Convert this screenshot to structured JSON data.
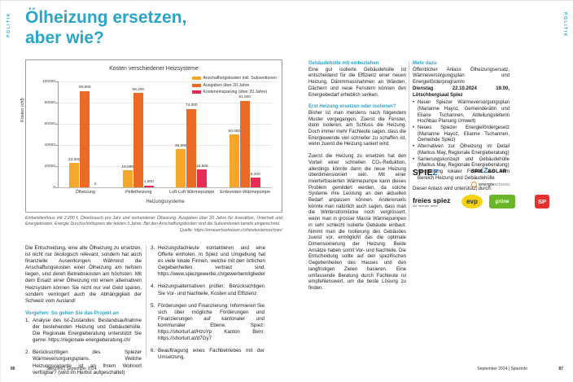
{
  "accent": "#2aa5c9",
  "page_left": {
    "section_label": "POLITIK",
    "title_line1": "Ölheizung ersetzen,",
    "title_line2": "aber wie?",
    "caption": "Einfamilienhaus mit 2.200 L Ölverbrauch pro Jahr und vorhandener Ölheizung. Ausgaben über 20 Jahre für Investition, Unterhalt und Energiekosten. Energie Durchschnittspreis der letzten 3 Jahre. Bei den Anschaffungskosten sind die Subventionen bereits eingerechnet.",
    "source": "Quelle: https://erneuerbarheizen.ch/heizkostenrechner/",
    "intro": "Die Entscheidung, eine alte Ölheizung zu ersetzen, ist nicht nur ökologisch relevant, sondern hat auch finanzielle Auswirkungen. Während die Anschaffungskosten einer Ölheizung am tiefsten liegen, sind deren Betriebskosten am höchsten. Mit dem Ersatz einer Ölheizung mit einem alternativen Heizsystem können Sie nicht nur viel Geld sparen, sondern verringert auch die Abhängigkeit der Schweiz vom Ausland!",
    "steps_heading": "Vorgehen: So gehen Sie das Projekt an",
    "step_nums": [
      "1.",
      "2.",
      "3.",
      "4.",
      "5.",
      "6."
    ],
    "steps": [
      "Analyse des Ist-Zustandes: Bestandsaufnahme der bestehenden Heizung und Gebäudehülle. Die Regionale Energieberatung unterstützt Sie gerne: https://regionale-energieberatung.ch/",
      "Berücksichtigen des Spiezer Wärmeversorgungsplans. Welche Heizungsvariante ist an Ihrem Wohnort verfügbar? (wird im Herbst aufgeschaltet)",
      "Heizungsfachleute kontaktieren und eine Offerte einholen. In Spiez und Umgebung hat es viele lokale Firmen, welche mit den örtlichen Gegebenheiten vertraut sind. https://www.spiezgewerbe.ch/gewerbemitglieder",
      "Heizungsalternativen prüfen: Berücksichtigen Sie Vor- und Nachteile, Kosten und Effizienz.",
      "Förderungen und Finanzierung: Informieren Sie sich über mögliche Förderungen und Finanzierungen auf kantonaler und kommunaler Ebene. Spiez: https://shorturl.at/HzoYp Kanton Bern: https://shorturl.at/d7Gy7",
      "Beauftragung eines Fachbetriebes mit der Umsetzung."
    ],
    "footer_page": "86",
    "footer_text": "Spiezinfo | September 2024"
  },
  "chart_data": {
    "type": "bar",
    "title": "Kosten verschiedener Heizsysteme",
    "xlabel": "Heizungssysteme",
    "ylabel": "Kosten (chf)",
    "ylim": [
      0,
      100000
    ],
    "ytick_step": 20000,
    "grid": true,
    "legend_position": "upper right",
    "categories": [
      "Ölheizung",
      "Pelletheizung",
      "Luft-Luft Wärmepumpe",
      "Erdsonden-Wärmepumpe"
    ],
    "series": [
      {
        "name": "Anschaffungskosten inkl. Subventionen",
        "color": "#f5a72b",
        "values": [
          23000,
          16000,
          36000,
          50000
        ]
      },
      {
        "name": "Ausgaben über 20 Jahre",
        "color": "#ea6a26",
        "values": [
          90800,
          89200,
          74000,
          81600
        ]
      },
      {
        "name": "Kosteneinsparung (über 20 Jahre)",
        "color": "#e72d56",
        "values": [
          0,
          1600,
          16800,
          9200
        ]
      }
    ]
  },
  "page_right": {
    "section_label": "POLITIK",
    "sec1_heading": "Gebäudehülle mit einbeziehen",
    "sec1_para": "Eine gut isolierte Gebäudehülle ist entscheidend für die Effizienz einer neuen Heizung. Dämmmassnahmen an Wänden, Dächern und neue Fenstern können den Energiebedarf erheblich senken.",
    "sec2_heading": "Erst Heizung ersetzen oder isolieren?",
    "sec2_para1": "Bisher ist man meistens nach folgendem Muster vorgegangen. Zuerst die Fenster, dann isolieren, am Schluss die Heizung. Doch immer mehr Fachleute sagen, dass die Energiewende viel schneller zu schaffen ist, wenn zuerst die Heizung saniert wird.",
    "sec2_para2": "Zuerst die Heizung zu ersetzen hat den Vorteil einer schnellen CO₂-Reduktion, allerdings könnte dann die neue Heizung überdimensioniert sein. Mit einer inverterbasierten Wärmepumpe kann dieses Problem gemildert werden, da solche Systeme ihre Leistung an den aktuellen Bedarf anpassen können. Andererseits könnte man natürlich auch sagen, dass man die Winterstromlücke noch vergrössert, wenn man in grosser Masse Wärmepumpen in sehr schlecht isolierte Gebäude einbaut. Nimmt man die Isolierung des Gebäudes zuerst vor, ermöglicht das die optimale Dimensionierung der Heizung. Beide Ansätze haben somit Vor- und Nachteile. Die Entscheidung sollte auf den spezifischen Gegebenheiten des Hauses und den langfristigen Zielen basieren. Eine umfassende Beratung durch Fachleute ist empfehlenswert, um die beste Lösung zu finden.",
    "mehr_heading": "Mehr dazu",
    "mehr_intro": "Öffentlicher Anlass Ölheizungsersatz, Wärmeversorgungsplan und Energieförderprogramm",
    "mehr_datetime": "Dienstag 22.10.2024 19.00, Lötschbergsaal Spiez",
    "mehr_bullets": [
      "Neuer Spiezer Wärmeversorgungsplan (Marianne Hayoz, Gemeinderätin und Eliane Tschannen, Abteilungsleiterin Hochbau Planung Umwelt)",
      "Neues Spiezer Energiefördergesetz (Marianne Hayoz, Elianne Tschannen, Gemeinde Spiez)",
      "Alternativen zur Ölheizung im Detail (Markus May, Regionale Energieberatung)",
      "Sanierungskonzept und Gebäudehülle (Markus May, Regionale Energieberatung)",
      "Ausstellung lokaler Firmen aus dem Bereich Heizung und Gebäudehülle"
    ],
    "mehr_support": "Dieser Anlass wird unterstützt durch:",
    "logos": {
      "spiez_pre": "SPIE",
      "spiez_z": "Z",
      "spiezsolar_pre": "SPIE",
      "spiezsolar_z": "Z",
      "spiezsolar_post": "SOLAR",
      "energie_b1": "energie",
      "energie_b2": "schweiz",
      "freies": "freies spiez",
      "freies_sub": "die liberale mitte",
      "evp": "evp",
      "gruene": "grüne",
      "sp": "SP"
    },
    "footer_text": "September 2024 | Spiezinfo",
    "footer_page": "87"
  }
}
